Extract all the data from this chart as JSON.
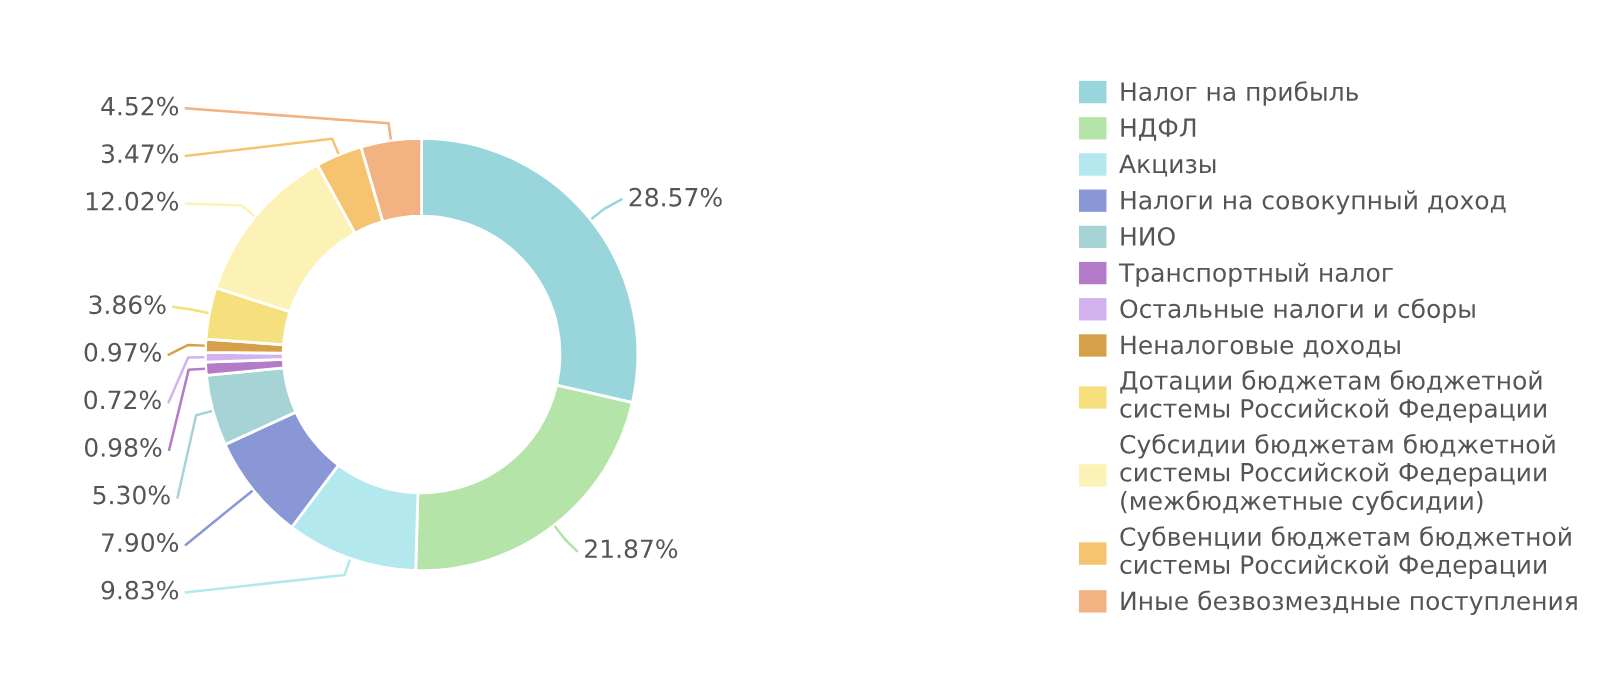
{
  "chart_data": {
    "type": "donut",
    "categories": [
      "Налог на прибыль",
      "НДФЛ",
      "Акцизы",
      "Налоги на совокупный доход",
      "НИО",
      "Транспортный налог",
      "Остальные налоги и сборы",
      "Неналоговые доходы",
      "Дотации бюджетам бюджетной\nсистемы Российской Федерации",
      "Субсидии бюджетам бюджетной\nсистемы Российской Федерации\n(межбюджетные субсидии)",
      "Субвенции бюджетам бюджетной\nсистемы Российской Федерации",
      "Иные безвозмездные поступления"
    ],
    "values": [
      28.57,
      21.87,
      9.83,
      7.9,
      5.3,
      0.98,
      0.72,
      0.97,
      3.86,
      12.02,
      3.47,
      4.52
    ],
    "value_labels": [
      "28.57%",
      "21.87%",
      "9.83%",
      "7.90%",
      "5.30%",
      "0.98%",
      "0.72%",
      "0.97%",
      "3.86%",
      "12.02%",
      "3.47%",
      "4.52%"
    ],
    "colors": [
      "#98d6dc",
      "#b4e4a8",
      "#b2e8ee",
      "#8a97d6",
      "#a6d4d6",
      "#b47cc8",
      "#d4b2ee",
      "#d6a04a",
      "#f6e07e",
      "#fcf2b6",
      "#f6c470",
      "#f2b282"
    ],
    "legend": "right"
  }
}
